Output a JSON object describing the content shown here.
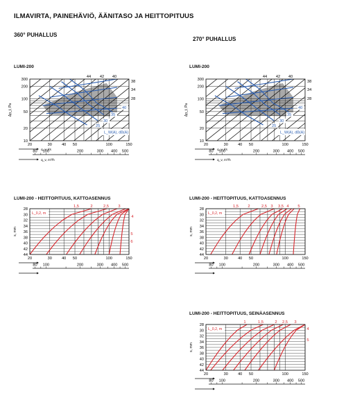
{
  "title": "ILMAVIRTA, PAINEHÄVIÖ, ÄÄNITASO JA HEITTOPITUUS",
  "sections": {
    "s360": "360° PUHALLUS",
    "s270": "270° PUHALLUS"
  },
  "charts": {
    "pd360": {
      "title": "LUMI-200",
      "y_ticks": [
        "300",
        "200",
        "100",
        "50",
        "20",
        "10"
      ],
      "x_ticks_ls": [
        "20",
        "30",
        "40",
        "50",
        "100",
        "150"
      ],
      "x_ticks_m3h": [
        "80",
        "100",
        "200",
        "300",
        "400",
        "500"
      ],
      "ylabel": "Δp_t, Pa",
      "xlabel_ls": "q_v, l/s",
      "xlabel_m3h": "q_v, m³/h",
      "diag_labels": [
        "44",
        "42",
        "40",
        "38",
        "34",
        "28"
      ],
      "sound_labels": [
        "40",
        "35",
        "30",
        "25"
      ],
      "lw_label": "L_W(A), dB(A)"
    },
    "pd270": {
      "title": "LUMI-200",
      "y_ticks": [
        "300",
        "200",
        "100",
        "50",
        "20",
        "10"
      ],
      "x_ticks_ls": [
        "20",
        "30",
        "40",
        "50",
        "100",
        "150"
      ],
      "x_ticks_m3h": [
        "80",
        "100",
        "200",
        "300",
        "400",
        "500"
      ],
      "ylabel": "Δp_t, Pa",
      "xlabel_ls": "q_v, l/s",
      "xlabel_m3h": "q_v, m³/h",
      "diag_labels": [
        "44",
        "42",
        "40",
        "38",
        "34",
        "28"
      ],
      "sound_labels": [
        "40",
        "35",
        "30",
        "25"
      ],
      "lw_label": "L_W(A), dB(A)"
    },
    "th360": {
      "title": "LUMI-200 - HEITTOPITUUS, KATTOASENNUS",
      "y_ticks": [
        "28",
        "30",
        "32",
        "34",
        "36",
        "38",
        "40",
        "42",
        "44"
      ],
      "x_ticks_ls": [
        "20",
        "30",
        "40",
        "50",
        "100",
        "150"
      ],
      "x_ticks_m3h": [
        "80",
        "100",
        "200",
        "300",
        "400",
        "500"
      ],
      "ylabel": "s, mm",
      "legend": "L_0,2, m",
      "curve_labels": [
        "1,5",
        "2",
        "2,5",
        "3",
        "4",
        "5",
        "6"
      ]
    },
    "th270": {
      "title": "LUMI-200 - HEITTOPITUUS, KATTOASENNUS",
      "y_ticks": [
        "28",
        "30",
        "32",
        "34",
        "36",
        "38",
        "40",
        "42",
        "44"
      ],
      "x_ticks_ls": [
        "20",
        "30",
        "40",
        "50",
        "100",
        "150"
      ],
      "x_ticks_m3h": [
        "80",
        "100",
        "200",
        "300",
        "400",
        "500"
      ],
      "ylabel": "s, mm",
      "legend": "L_0,2, m",
      "curve_labels": [
        "1,5",
        "2",
        "2,5",
        "3",
        "3,5",
        "4",
        "5"
      ]
    },
    "th270w": {
      "title": "LUMI-200 - HEITTOPITUUS, SEINÄASENNUS",
      "y_ticks": [
        "28",
        "30",
        "32",
        "34",
        "36",
        "38",
        "40",
        "42",
        "44"
      ],
      "x_ticks_ls": [
        "20",
        "30",
        "40",
        "50",
        "100",
        "150"
      ],
      "x_ticks_m3h": [
        "80",
        "100",
        "200",
        "300",
        "400",
        "500"
      ],
      "ylabel": "s, mm",
      "legend": "L_0,2, m",
      "curve_labels": [
        "1",
        "1,5",
        "2",
        "2,5",
        "3",
        "4",
        "5"
      ]
    }
  },
  "colors": {
    "grid": "#222222",
    "blue": "#2a5db0",
    "red": "#d8262c",
    "shade": "#a9a9a9"
  }
}
